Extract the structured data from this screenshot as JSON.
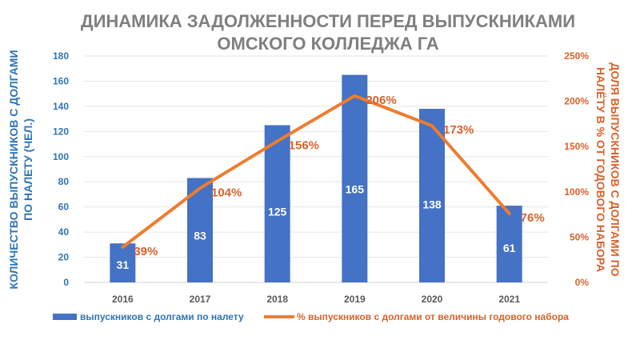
{
  "chart_data": {
    "type": "bar+line",
    "title": [
      "ДИНАМИКА ЗАДОЛЖЕННОСТИ ПЕРЕД ВЫПУСКНИКАМИ",
      "ОМСКОГО КОЛЛЕДЖА ГА"
    ],
    "categories": [
      "2016",
      "2017",
      "2018",
      "2019",
      "2020",
      "2021"
    ],
    "series": [
      {
        "name": "выпускников с долгами по налету",
        "type": "bar",
        "axis": "left",
        "values": [
          31,
          83,
          125,
          165,
          138,
          61
        ],
        "labels": [
          "31",
          "83",
          "125",
          "165",
          "138",
          "61"
        ]
      },
      {
        "name": "% выпускников с долгами от величины годового набора",
        "type": "line",
        "axis": "right",
        "values": [
          39,
          104,
          156,
          206,
          173,
          76
        ],
        "labels": [
          "39%",
          "104%",
          "156%",
          "206%",
          "173%",
          "76%"
        ]
      }
    ],
    "ylabel": [
      "КОЛИЧЕСТВО ВЫПУСКНИКОВ С ДОЛГАМИ",
      "ПО НАЛЕТУ (ЧЕЛ.)"
    ],
    "y2label": [
      "ДОЛЯ ВЫПУСКНИКОВ С ДОЛГАМИ ПО",
      "НАЛЁТУ В % ОТ ГОДОВОГО НАБОРА"
    ],
    "ylim": [
      0,
      180
    ],
    "yticks": [
      "0",
      "20",
      "40",
      "60",
      "80",
      "100",
      "120",
      "140",
      "160",
      "180"
    ],
    "y2lim": [
      0,
      250
    ],
    "y2ticks": [
      "0%",
      "50%",
      "100%",
      "150%",
      "200%",
      "250%"
    ],
    "grid": true,
    "legend": "bottom",
    "colors": {
      "bar": "#4472C4",
      "line": "#ED7D31",
      "line_label": "#D9622B",
      "title": "#7F7F7F",
      "tick": "#595959"
    }
  }
}
